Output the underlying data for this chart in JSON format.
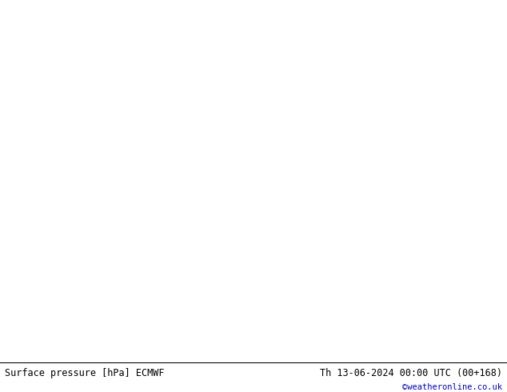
{
  "title_left": "Surface pressure [hPa] ECMWF",
  "title_right": "Th 13-06-2024 00:00 UTC (00+168)",
  "credit": "©weatheronline.co.uk",
  "land_green": "#c8f0a0",
  "land_gray": "#d0d0d0",
  "sea_color": "#d8d8d8",
  "contour_color": "#ff0000",
  "border_color": "#909090",
  "label_color": "#ff0000",
  "figsize": [
    6.34,
    4.9
  ],
  "dpi": 100,
  "map_extent": [
    -12,
    22,
    45,
    62
  ],
  "bottom_bar_height": 0.075
}
